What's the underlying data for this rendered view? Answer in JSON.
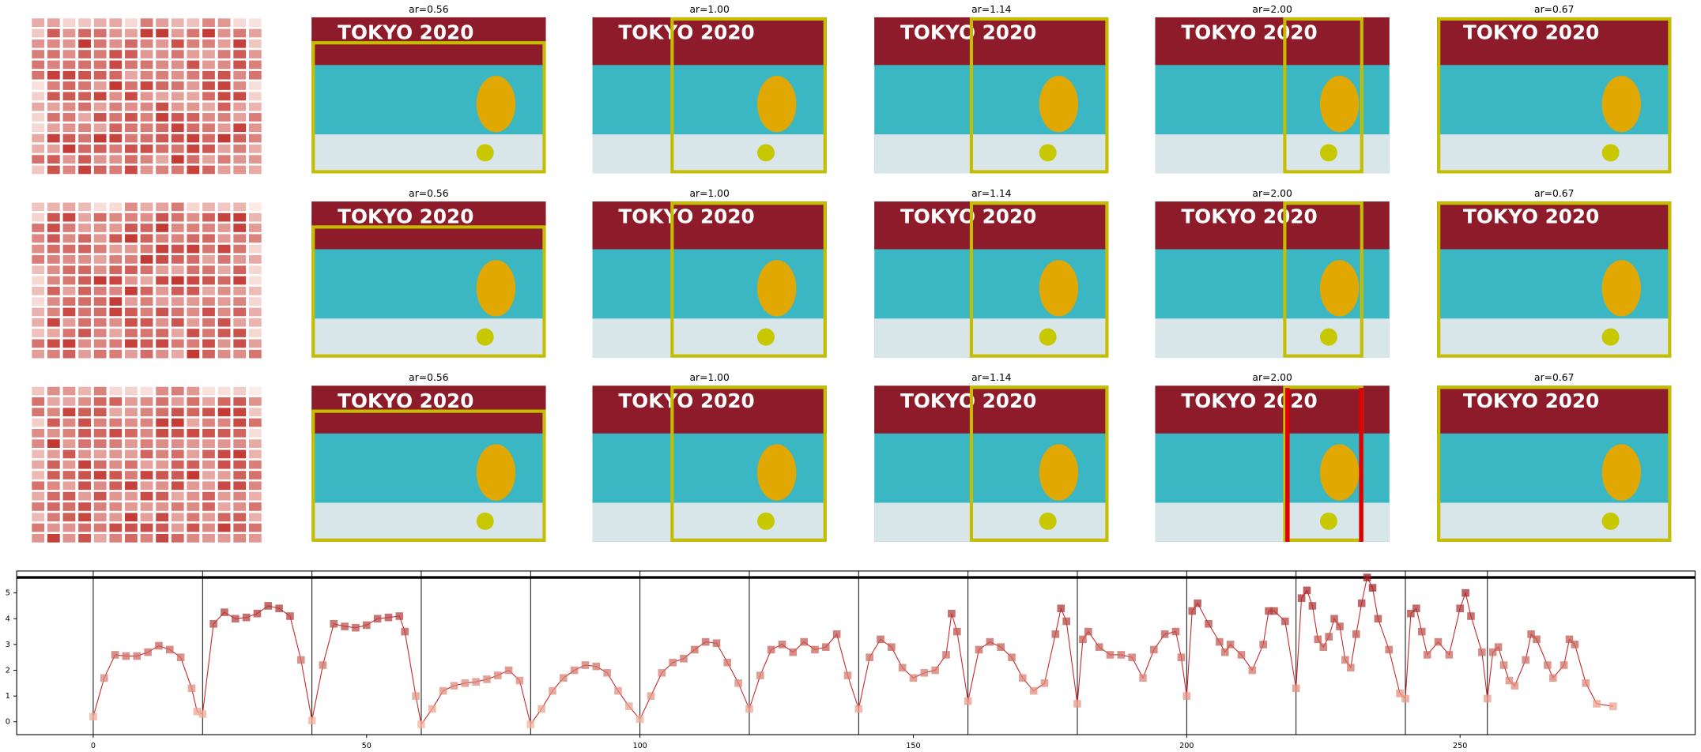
{
  "panels": {
    "banner": "TOKYO 2020",
    "rows": [
      [
        "ar=0.56",
        "ar=1.00",
        "ar=1.14",
        "ar=2.00",
        "ar=0.67"
      ],
      [
        "ar=0.56",
        "ar=1.00",
        "ar=1.14",
        "ar=2.00",
        "ar=0.67"
      ],
      [
        "ar=0.56",
        "ar=1.00",
        "ar=1.14",
        "ar=2.00",
        "ar=0.67"
      ]
    ]
  },
  "chart_data": {
    "type": "line",
    "color": "#c8282d",
    "x": [
      0,
      2,
      4,
      6,
      8,
      10,
      12,
      14,
      16,
      18,
      19,
      20,
      22,
      24,
      26,
      28,
      30,
      32,
      34,
      36,
      38,
      40,
      42,
      44,
      46,
      48,
      50,
      52,
      54,
      56,
      57,
      59,
      60,
      62,
      64,
      66,
      68,
      70,
      72,
      74,
      76,
      78,
      80,
      82,
      84,
      86,
      88,
      90,
      92,
      94,
      96,
      98,
      100,
      102,
      104,
      106,
      108,
      110,
      112,
      114,
      116,
      118,
      120,
      122,
      124,
      126,
      128,
      130,
      132,
      134,
      136,
      138,
      140,
      142,
      144,
      146,
      148,
      150,
      152,
      154,
      156,
      157,
      158,
      160,
      162,
      164,
      166,
      168,
      170,
      172,
      174,
      176,
      177,
      178,
      180,
      181,
      182,
      184,
      186,
      188,
      190,
      192,
      194,
      196,
      198,
      199,
      200,
      201,
      202,
      204,
      206,
      207,
      208,
      210,
      212,
      214,
      215,
      216,
      218,
      220,
      221,
      222,
      223,
      224,
      225,
      226,
      227,
      228,
      229,
      230,
      231,
      232,
      233,
      234,
      235,
      237,
      239,
      240,
      241,
      242,
      243,
      244,
      246,
      248,
      250,
      251,
      252,
      254,
      255,
      256,
      257,
      258,
      259,
      260,
      262,
      263,
      264,
      266,
      267,
      269,
      270,
      271,
      273,
      275,
      278
    ],
    "values": [
      0.2,
      1.7,
      2.6,
      2.55,
      2.55,
      2.7,
      2.95,
      2.8,
      2.5,
      1.3,
      0.4,
      0.3,
      3.8,
      4.25,
      4.0,
      4.05,
      4.2,
      4.5,
      4.4,
      4.1,
      2.4,
      0.05,
      2.2,
      3.8,
      3.7,
      3.65,
      3.75,
      4.0,
      4.05,
      4.1,
      3.5,
      1.0,
      -0.1,
      0.5,
      1.2,
      1.4,
      1.5,
      1.55,
      1.65,
      1.8,
      2.0,
      1.6,
      -0.1,
      0.5,
      1.2,
      1.7,
      2.0,
      2.2,
      2.15,
      1.9,
      1.2,
      0.6,
      0.1,
      1.0,
      1.9,
      2.3,
      2.45,
      2.8,
      3.1,
      3.05,
      2.3,
      1.5,
      0.5,
      1.8,
      2.8,
      3.0,
      2.7,
      3.1,
      2.8,
      2.9,
      3.4,
      1.8,
      0.5,
      2.5,
      3.2,
      2.9,
      2.1,
      1.7,
      1.9,
      2.0,
      2.6,
      4.2,
      3.5,
      0.8,
      2.8,
      3.1,
      2.9,
      2.5,
      1.7,
      1.2,
      1.5,
      3.4,
      4.4,
      3.9,
      0.7,
      3.2,
      3.5,
      2.9,
      2.6,
      2.6,
      2.5,
      1.7,
      2.8,
      3.4,
      3.5,
      2.5,
      1.0,
      4.3,
      4.6,
      3.8,
      3.1,
      2.7,
      3.0,
      2.6,
      2.0,
      3.0,
      4.3,
      4.3,
      3.9,
      1.3,
      4.8,
      5.1,
      4.5,
      3.2,
      2.9,
      3.3,
      4.0,
      3.7,
      2.4,
      2.1,
      3.4,
      4.6,
      5.6,
      5.2,
      4.0,
      2.8,
      1.1,
      0.9,
      4.2,
      4.4,
      3.5,
      2.6,
      3.1,
      2.6,
      4.4,
      5.0,
      4.1,
      2.7,
      0.9,
      2.7,
      2.9,
      2.2,
      1.6,
      1.4,
      2.4,
      3.4,
      3.2,
      2.2,
      1.7,
      2.2,
      3.2,
      3.0,
      1.5,
      0.7,
      0.6
    ],
    "xlim": [
      -14,
      293
    ],
    "ylim": [
      -0.5,
      5.85
    ],
    "xticks": [
      0,
      50,
      100,
      150,
      200,
      250
    ],
    "yticks": [
      0,
      1,
      2,
      3,
      4,
      5
    ],
    "hline": 5.6,
    "vlines": [
      0,
      20,
      40,
      60,
      80,
      100,
      120,
      140,
      160,
      180,
      200,
      220,
      240,
      255
    ]
  }
}
